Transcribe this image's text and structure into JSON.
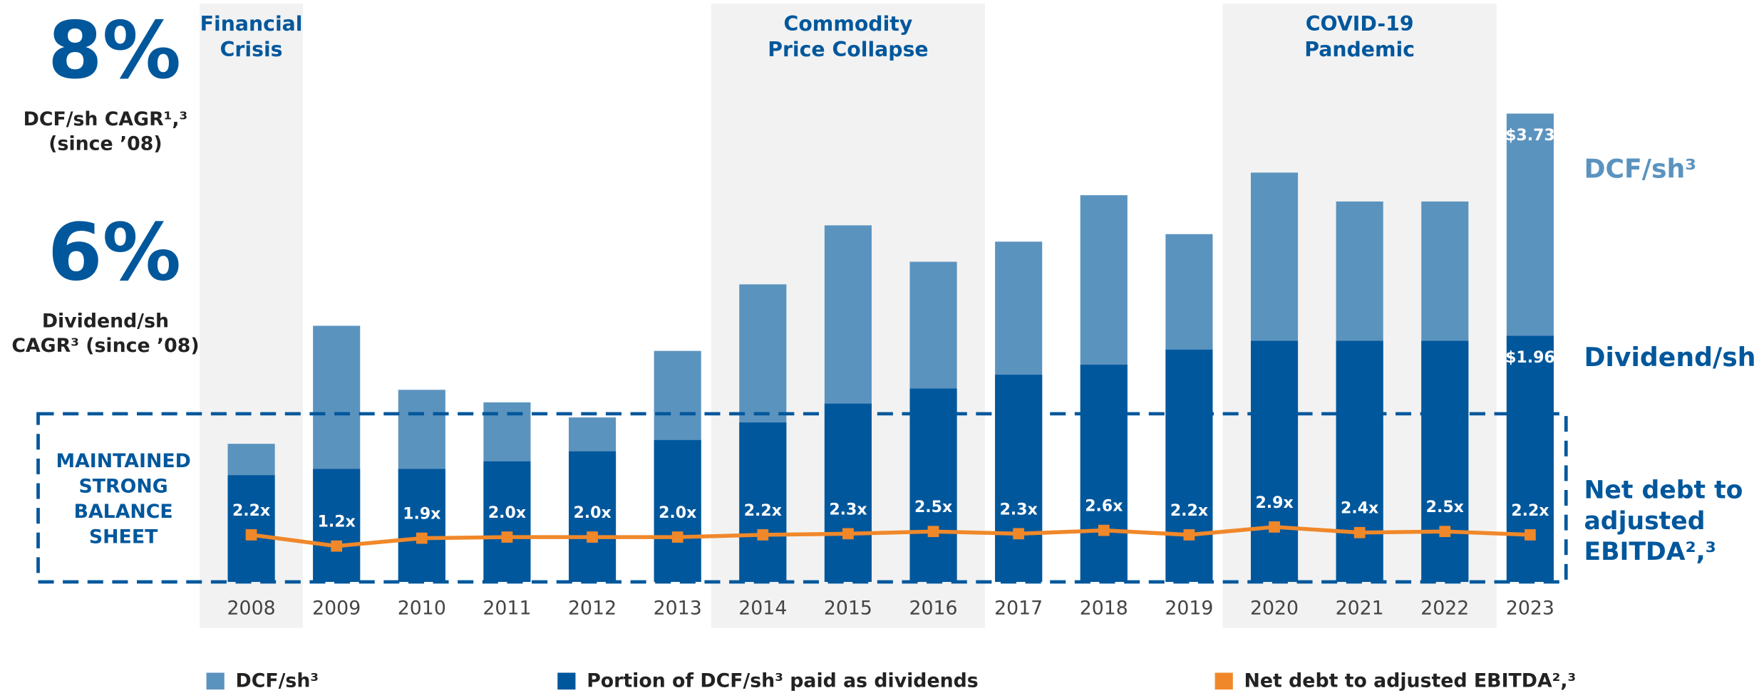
{
  "chart_data": {
    "type": "bar",
    "categories": [
      "2008",
      "2009",
      "2010",
      "2011",
      "2012",
      "2013",
      "2014",
      "2015",
      "2016",
      "2017",
      "2018",
      "2019",
      "2020",
      "2021",
      "2022",
      "2023"
    ],
    "series": [
      {
        "name": "DCF/sh³",
        "color": "#5b93bf",
        "values": [
          1.1,
          2.04,
          1.53,
          1.43,
          1.31,
          1.84,
          2.37,
          2.84,
          2.55,
          2.71,
          3.08,
          2.77,
          3.26,
          3.03,
          3.03,
          3.73
        ],
        "value_labels": [
          null,
          null,
          null,
          null,
          null,
          null,
          null,
          null,
          null,
          null,
          null,
          null,
          null,
          null,
          null,
          "$3.73"
        ]
      },
      {
        "name": "Portion of DCF/sh³ paid as dividends",
        "color": "#00579c",
        "values": [
          0.85,
          0.9,
          0.9,
          0.96,
          1.04,
          1.13,
          1.27,
          1.42,
          1.54,
          1.65,
          1.73,
          1.85,
          1.92,
          1.92,
          1.92,
          1.96
        ],
        "value_labels": [
          null,
          null,
          null,
          null,
          null,
          null,
          null,
          null,
          null,
          null,
          null,
          null,
          null,
          null,
          null,
          "$1.96"
        ]
      },
      {
        "name": "Net debt to adjusted EBITDA²,³",
        "color": "#f0882a",
        "type": "line",
        "axis": "y2",
        "values": [
          2.2,
          1.2,
          1.9,
          2.0,
          2.0,
          2.0,
          2.2,
          2.3,
          2.5,
          2.3,
          2.6,
          2.2,
          2.9,
          2.4,
          2.5,
          2.2
        ],
        "value_labels": [
          "2.2x",
          "1.2x",
          "1.9x",
          "2.0x",
          "2.0x",
          "2.0x",
          "2.2x",
          "2.3x",
          "2.5x",
          "2.3x",
          "2.6x",
          "2.2x",
          "2.9x",
          "2.4x",
          "2.5x",
          "2.2x"
        ]
      }
    ],
    "ylim": [
      0,
      3.75
    ],
    "y2lim": [
      -2,
      40
    ],
    "callouts": [
      {
        "value": "8%",
        "lines": [
          "DCF/sh CAGR¹,³",
          "(since ’08)"
        ]
      },
      {
        "value": "6%",
        "lines": [
          "Dividend/sh",
          "CAGR³ (since ’08)"
        ]
      }
    ],
    "periods": [
      {
        "lines": [
          "Financial",
          "Crisis"
        ]
      },
      {
        "lines": [
          "Commodity",
          "Price Collapse"
        ]
      },
      {
        "lines": [
          "COVID-19",
          "Pandemic"
        ]
      }
    ],
    "box_label": [
      "MAINTAINED",
      "STRONG",
      "BALANCE",
      "SHEET"
    ],
    "series_labels": [
      [
        "DCF/sh³"
      ],
      [
        "Dividend/sh"
      ],
      [
        "Net debt to",
        "adjusted",
        "EBITDA²,³"
      ]
    ]
  }
}
